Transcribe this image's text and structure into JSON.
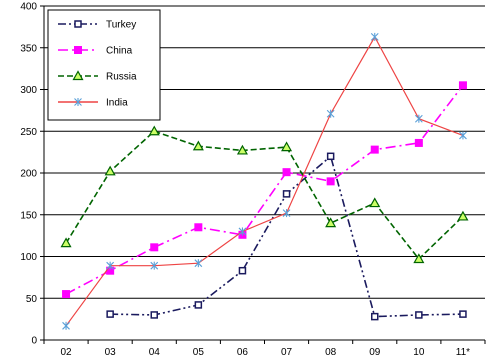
{
  "chart_data": {
    "type": "line",
    "categories": [
      "02",
      "03",
      "04",
      "05",
      "06",
      "07",
      "08",
      "09",
      "10",
      "11*"
    ],
    "ylim": [
      0,
      400
    ],
    "yticks": [
      0,
      50,
      100,
      150,
      200,
      250,
      300,
      350,
      400
    ],
    "grid": "horizontal",
    "legend_position": "top-left",
    "series": [
      {
        "name": "Turkey",
        "color": "#1a1a5e",
        "dash": "dash-dot-dot",
        "marker": "square-open",
        "values": [
          null,
          31,
          30,
          42,
          83,
          175,
          220,
          28,
          30,
          31
        ]
      },
      {
        "name": "China",
        "color": "#ff00ff",
        "dash": "long-dash-dot",
        "marker": "square",
        "values": [
          55,
          83,
          111,
          135,
          126,
          201,
          190,
          228,
          236,
          305
        ]
      },
      {
        "name": "Russia",
        "color": "#006400",
        "dash": "dashed",
        "marker": "triangle",
        "values": [
          116,
          202,
          250,
          232,
          227,
          231,
          140,
          164,
          97,
          148
        ]
      },
      {
        "name": "India",
        "color": "#ee4444",
        "dash": "solid",
        "marker": "star",
        "values": [
          17,
          89,
          89,
          92,
          130,
          152,
          271,
          363,
          265,
          245
        ]
      }
    ]
  }
}
